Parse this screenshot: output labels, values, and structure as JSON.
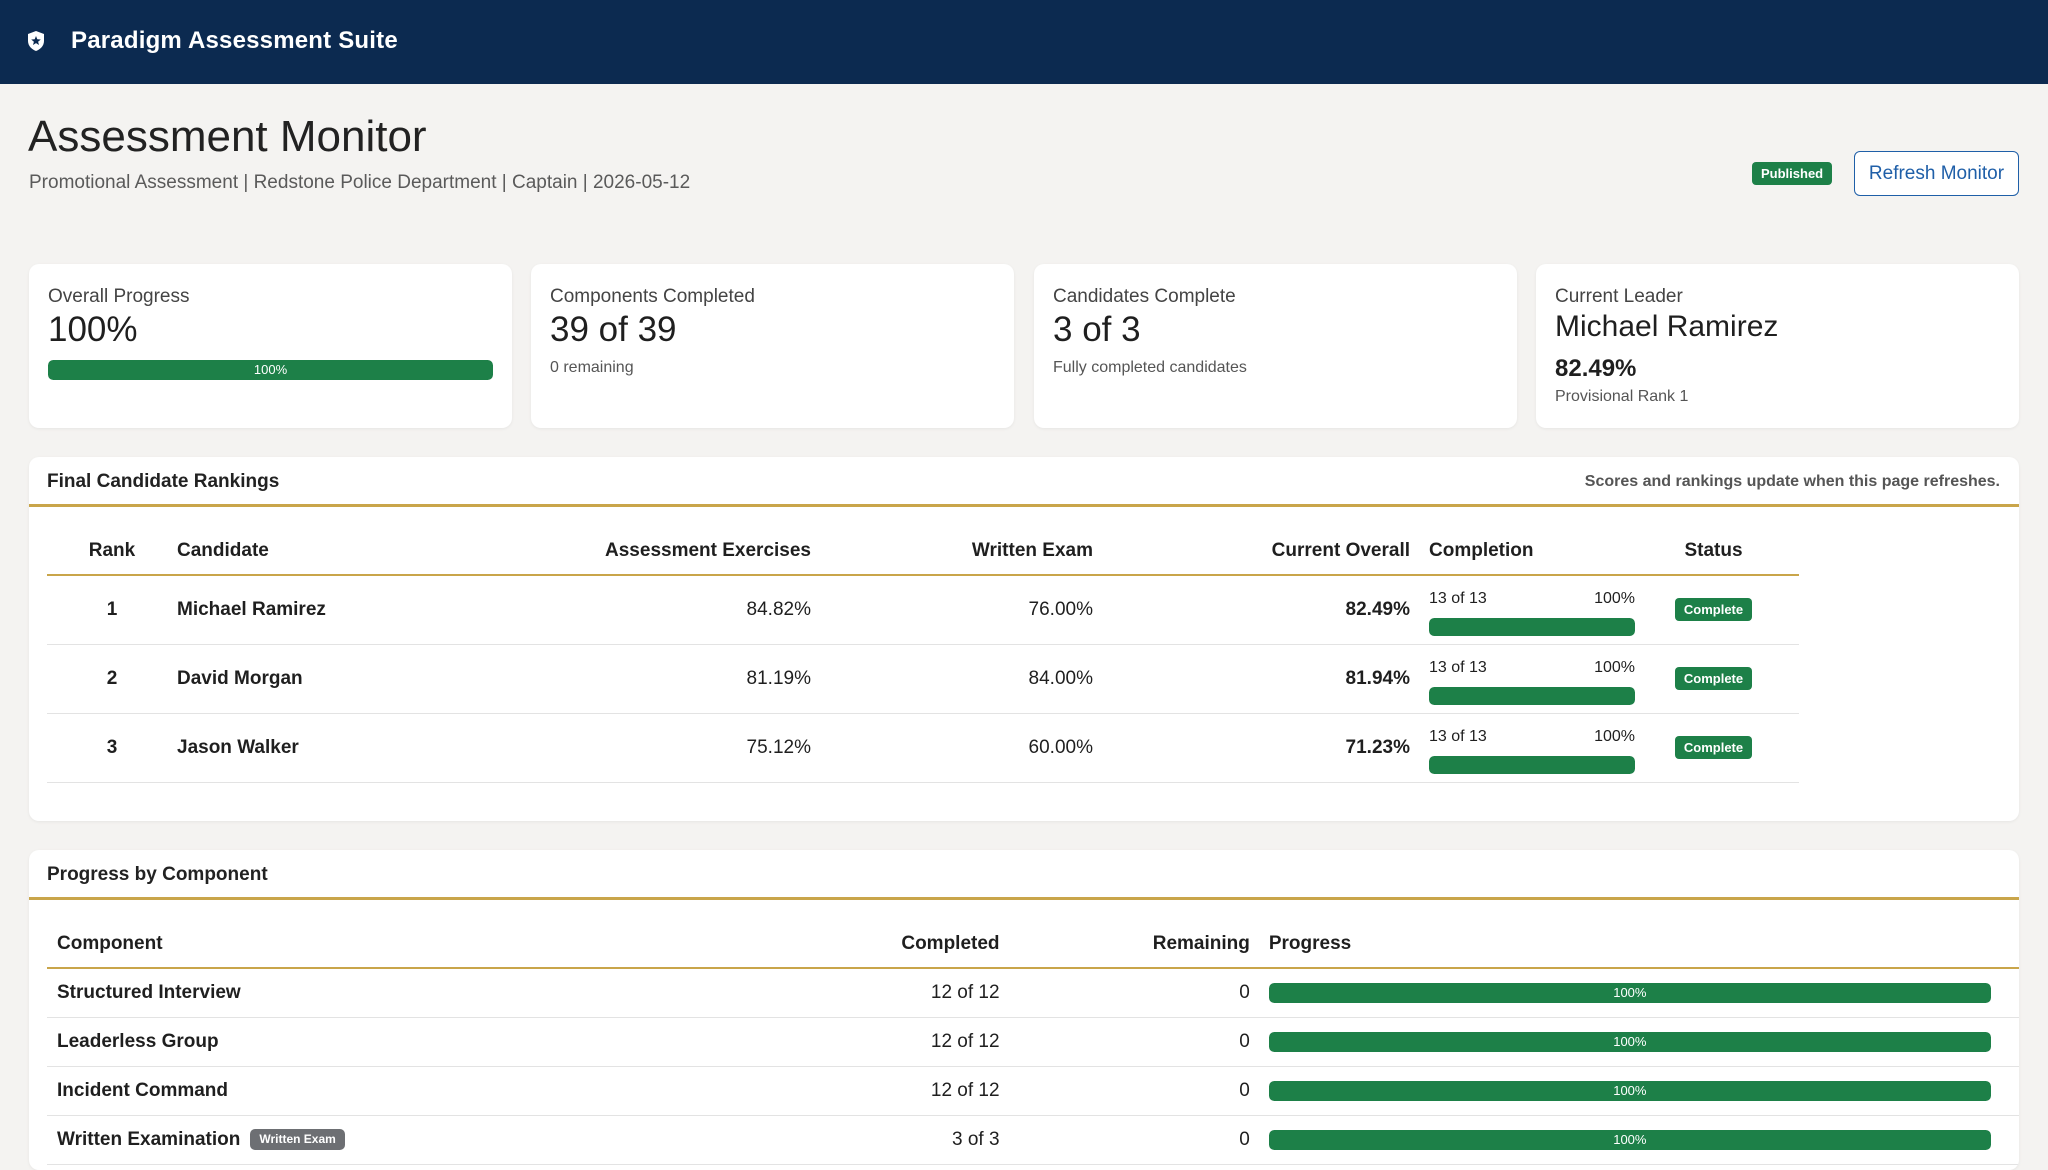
{
  "app": {
    "title": "Paradigm Assessment Suite"
  },
  "page": {
    "title": "Assessment Monitor",
    "subtitle": "Promotional Assessment | Redstone Police Department | Captain | 2026-05-12",
    "status_badge": "Published",
    "refresh_label": "Refresh Monitor"
  },
  "cards": {
    "overall": {
      "label": "Overall Progress",
      "value": "100%",
      "bar_label": "100%",
      "progress": 1.0
    },
    "components": {
      "label": "Components Completed",
      "value": "39 of 39",
      "note": "0 remaining"
    },
    "candidates": {
      "label": "Candidates Complete",
      "value": "3 of 3",
      "note": "Fully completed candidates"
    },
    "leader": {
      "label": "Current Leader",
      "name": "Michael Ramirez",
      "score": "82.49%",
      "rank_note": "Provisional Rank 1"
    }
  },
  "rankings": {
    "title": "Final Candidate Rankings",
    "note": "Scores and rankings update when this page refreshes.",
    "headers": {
      "rank": "Rank",
      "candidate": "Candidate",
      "exercises": "Assessment Exercises",
      "written": "Written Exam",
      "overall": "Current Overall",
      "completion": "Completion",
      "status": "Status"
    },
    "rows": [
      {
        "rank": "1",
        "candidate": "Michael Ramirez",
        "exercises": "84.82%",
        "written": "76.00%",
        "overall": "82.49%",
        "completion_count": "13 of 13",
        "completion_pct": "100%",
        "completion": 1.0,
        "status": "Complete"
      },
      {
        "rank": "2",
        "candidate": "David Morgan",
        "exercises": "81.19%",
        "written": "84.00%",
        "overall": "81.94%",
        "completion_count": "13 of 13",
        "completion_pct": "100%",
        "completion": 1.0,
        "status": "Complete"
      },
      {
        "rank": "3",
        "candidate": "Jason Walker",
        "exercises": "75.12%",
        "written": "60.00%",
        "overall": "71.23%",
        "completion_count": "13 of 13",
        "completion_pct": "100%",
        "completion": 1.0,
        "status": "Complete"
      }
    ]
  },
  "progress": {
    "title": "Progress by Component",
    "headers": {
      "component": "Component",
      "completed": "Completed",
      "remaining": "Remaining",
      "progress": "Progress"
    },
    "rows": [
      {
        "component": "Structured Interview",
        "tag": "",
        "completed": "12 of 12",
        "remaining": "0",
        "progress_label": "100%",
        "progress": 1.0
      },
      {
        "component": "Leaderless Group",
        "tag": "",
        "completed": "12 of 12",
        "remaining": "0",
        "progress_label": "100%",
        "progress": 1.0
      },
      {
        "component": "Incident Command",
        "tag": "",
        "completed": "12 of 12",
        "remaining": "0",
        "progress_label": "100%",
        "progress": 1.0
      },
      {
        "component": "Written Examination",
        "tag": "Written Exam",
        "completed": "3 of 3",
        "remaining": "0",
        "progress_label": "100%",
        "progress": 1.0
      }
    ]
  },
  "colors": {
    "header_bg": "#0c2a50",
    "accent_green": "#1d8048",
    "gold_rule": "#c9a54a",
    "link_blue": "#1f5fa8"
  },
  "icons": {
    "logo": "shield-icon"
  }
}
